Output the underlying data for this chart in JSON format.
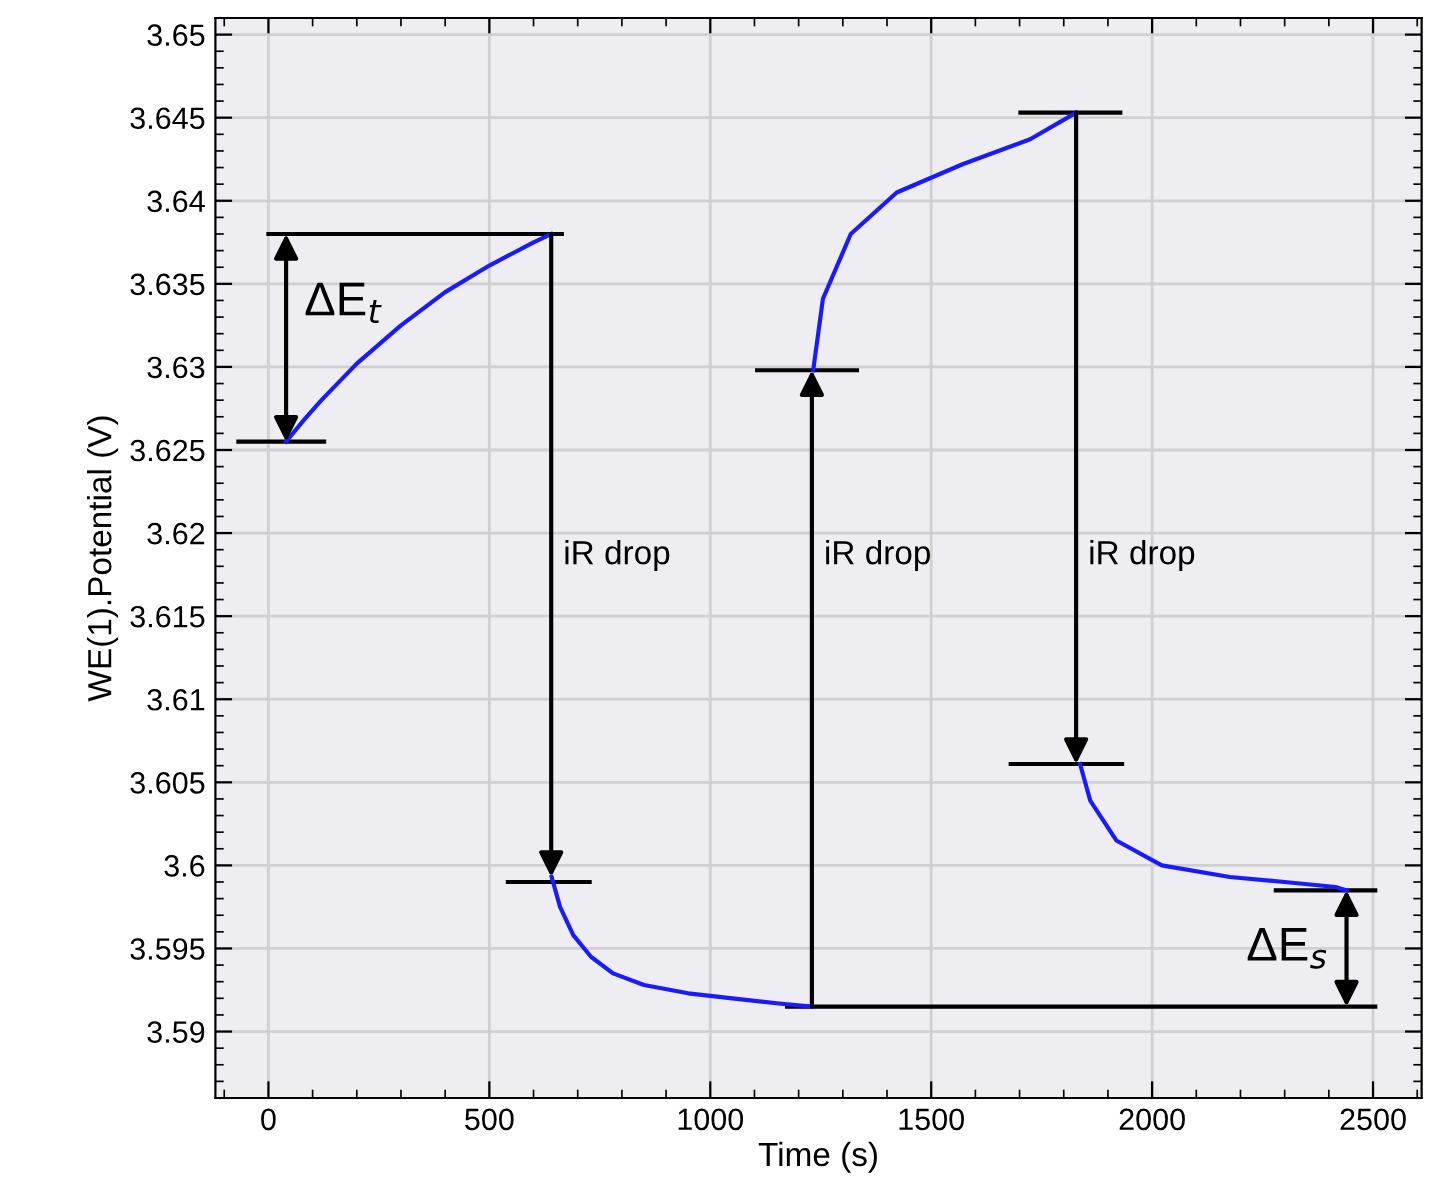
{
  "chart_data": {
    "type": "line",
    "xlabel": "Time (s)",
    "ylabel": "WE(1).Potential (V)",
    "x": [
      40,
      80,
      120,
      200,
      300,
      400,
      500,
      600,
      640,
      641,
      660,
      690,
      730,
      780,
      850,
      950,
      1050,
      1150,
      1230,
      1233,
      1255,
      1318,
      1422,
      1571,
      1724,
      1828,
      1837,
      1860,
      1919,
      2022,
      2176,
      2300,
      2415,
      2440
    ],
    "series": [
      {
        "type": "line",
        "color": "#000000",
        "x": [
          -68,
          126,
          null,
          0,
          664,
          null,
          542,
          727,
          null,
          1106,
          1332,
          null,
          1702,
          1928,
          null,
          1680,
          1932,
          null,
          2280,
          2505,
          null,
          1174,
          2505
        ],
        "values": [
          3.6255,
          3.6255,
          null,
          3.638,
          3.638,
          null,
          3.599,
          3.599,
          null,
          3.6298,
          3.6298,
          null,
          3.6453,
          3.6453,
          null,
          3.6061,
          3.6061,
          null,
          3.5985,
          3.5985,
          null,
          3.5915,
          3.5915
        ]
      },
      {
        "color": "#1a1aff",
        "values": [
          3.6255,
          3.6268,
          3.628,
          3.6302,
          3.6325,
          3.6345,
          3.6361,
          3.6375,
          3.638,
          3.5993,
          3.5975,
          3.5958,
          3.5945,
          3.5935,
          3.5928,
          3.5923,
          3.592,
          3.5917,
          3.5915,
          3.6298,
          3.6341,
          3.638,
          3.6405,
          3.6422,
          3.6437,
          3.6453,
          3.6061,
          3.6039,
          3.6015,
          3.6,
          3.5993,
          3.599,
          3.5987,
          3.5985
        ]
      }
    ],
    "xlim": [
      -120,
      2610
    ],
    "ylim": [
      3.586,
      3.651
    ],
    "xticks": [
      0,
      500,
      1000,
      1500,
      2000,
      2500
    ],
    "yticks": [
      3.59,
      3.595,
      3.6,
      3.605,
      3.61,
      3.615,
      3.62,
      3.625,
      3.63,
      3.635,
      3.64,
      3.645,
      3.65
    ],
    "grid": true,
    "marker": "none",
    "line_style": "solid",
    "annotations": [
      "ΔE$_{t}$",
      "iR drop",
      "iR drop",
      "iR drop",
      "ΔE$_{s}$"
    ]
  }
}
